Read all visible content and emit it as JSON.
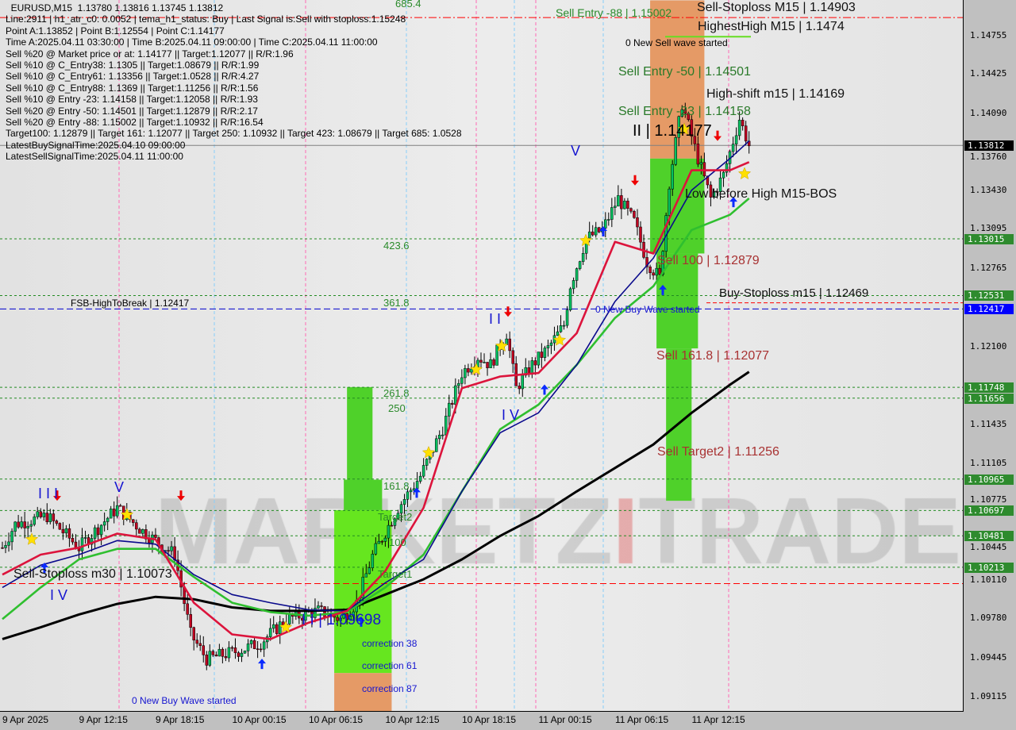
{
  "header": {
    "lines": [
      "  EURUSD,M15  1.13780 1.13816 1.13745 1.13812",
      "Line:2911 | h1_atr_c0: 0.0052 | tema_h1_status: Buy | Last Signal is:Sell with stoploss:1.15248",
      "Point A:1.13852 | Point B:1.12554 | Point C:1.14177",
      "Time A:2025.04.11 03:30:00 | Time B:2025.04.11 09:00:00 | Time C:2025.04.11 11:00:00",
      "Sell %20 @ Market price or at: 1.14177 || Target:1.12077 || R/R:1.96",
      "Sell %10 @ C_Entry38: 1.1305 || Target:1.08679 || R/R:1.99",
      "Sell %10 @ C_Entry61: 1.13356 || Target:1.0528 || R/R:4.27",
      "Sell %10 @ C_Entry88: 1.1369 || Target:1.11256 || R/R:1.56",
      "Sell %10 @ Entry -23: 1.14158 || Target:1.12058 || R/R:1.93",
      "Sell %20 @ Entry -50: 1.14501 || Target:1.12879 || R/R:2.17",
      "Sell %20 @ Entry -88: 1.15002 || Target:1.10932 || R/R:16.54",
      "Target100: 1.12879 || Target 161: 1.12077 || Target 250: 1.10932 || Target 423: 1.08679 || Target 685: 1.0528",
      "LatestBuySignalTime:2025.04.10 09:00:00",
      "LatestSellSignalTime:2025.04.11 11:00:00"
    ]
  },
  "watermark": "MARKETZ TRADE",
  "labels": {
    "sell_stoploss_m15": "Sell-Stoploss M15 | 1.14903",
    "highest_high": "HighestHigh   M15 | 1.1474",
    "new_sell_wave": "0 New Sell wave started",
    "sell_entry_88": "Sell Entry -88 | 1.15002",
    "sell_entry_50": "Sell Entry -50 | 1.14501",
    "high_shift": "High-shift m15 | 1.14169",
    "sell_entry_23": "Sell Entry -23 | 1.14158",
    "point_c": "II | 1.14177",
    "low_before_high": "Low before High   M15-BOS",
    "sell_100": "Sell 100 | 1.12879",
    "buy_stoploss": "Buy-Stoploss m15 | 1.12469",
    "new_buy_wave_right": "0 New Buy Wave started",
    "sell_161": "Sell 161.8 | 1.12077",
    "sell_target2": "Sell Target2 | 1.11256",
    "fsb": "FSB-HighToBreak | 1.12417",
    "sell_stoploss_m30": "Sell-Stoploss m30 | 1.10073",
    "point_low": "I I | 1.09698",
    "new_buy_wave_left": "0 New Buy Wave started",
    "fib_685": "685.4",
    "fib_423": "423.6",
    "fib_361": "361.8",
    "fib_261": "261.8",
    "fib_250": "250",
    "fib_161": "161.8",
    "target2": "Target2",
    "fib_100": "100",
    "target1": "Target1",
    "correction_38": "correction 38",
    "correction_61": "correction 61",
    "correction_87": "correction 87",
    "wave_marks": [
      "I I I",
      "V",
      "I V",
      "I I",
      "I V",
      "V"
    ]
  },
  "chart_data": {
    "type": "candlestick",
    "symbol": "EURUSD",
    "timeframe": "M15",
    "ylim": [
      1.0895,
      1.1505
    ],
    "y_ticks": [
      1.14755,
      1.14425,
      1.1409,
      1.1376,
      1.1343,
      1.13095,
      1.12765,
      1.121,
      1.11435,
      1.11105,
      1.10775,
      1.10445,
      1.1011,
      1.0978,
      1.09445,
      1.09115
    ],
    "x_ticks": [
      "9 Apr 2025",
      "9 Apr 12:15",
      "9 Apr 18:15",
      "10 Apr 00:15",
      "10 Apr 06:15",
      "10 Apr 12:15",
      "10 Apr 18:15",
      "11 Apr 00:15",
      "11 Apr 06:15",
      "11 Apr 12:15"
    ],
    "current_price": 1.13812,
    "price_tags": [
      {
        "value": "1.13812",
        "color": "#000000"
      },
      {
        "value": "1.13015",
        "color": "#2e8b2e"
      },
      {
        "value": "1.12531",
        "color": "#2e8b2e"
      },
      {
        "value": "1.12417",
        "color": "#0000ff"
      },
      {
        "value": "1.11748",
        "color": "#2e8b2e"
      },
      {
        "value": "1.11656",
        "color": "#2e8b2e"
      },
      {
        "value": "1.10965",
        "color": "#2e8b2e"
      },
      {
        "value": "1.10697",
        "color": "#2e8b2e"
      },
      {
        "value": "1.10481",
        "color": "#2e8b2e"
      },
      {
        "value": "1.10213",
        "color": "#2e8b2e"
      }
    ],
    "levels": [
      {
        "price": 1.14903,
        "color": "#ff0000",
        "style": "dashdot"
      },
      {
        "price": 1.13812,
        "color": "#808080",
        "style": "solid"
      },
      {
        "price": 1.13015,
        "color": "#228b22",
        "style": "dotted"
      },
      {
        "price": 1.12531,
        "color": "#228b22",
        "style": "dotted"
      },
      {
        "price": 1.12417,
        "color": "#0000cd",
        "style": "dashed"
      },
      {
        "price": 1.11748,
        "color": "#228b22",
        "style": "dotted"
      },
      {
        "price": 1.11656,
        "color": "#228b22",
        "style": "dotted"
      },
      {
        "price": 1.10965,
        "color": "#228b22",
        "style": "dotted"
      },
      {
        "price": 1.10697,
        "color": "#228b22",
        "style": "dotted"
      },
      {
        "price": 1.10481,
        "color": "#228b22",
        "style": "dotted"
      },
      {
        "price": 1.10213,
        "color": "#228b22",
        "style": "dotted"
      },
      {
        "price": 1.10073,
        "color": "#ff0000",
        "style": "dashed"
      }
    ],
    "zones": [
      {
        "from": "2025-04-11 09:00",
        "to": "2025-04-11 13:15",
        "low": 1.137,
        "high": 1.1505,
        "color": "#e59a66"
      },
      {
        "from": "2025-04-11 09:00",
        "to": "2025-04-11 13:15",
        "low": 1.1289,
        "high": 1.137,
        "color": "#4fd12a"
      },
      {
        "from": "2025-04-11 09:30",
        "to": "2025-04-11 12:45",
        "low": 1.1208,
        "high": 1.1289,
        "color": "#4fd12a"
      },
      {
        "from": "2025-04-11 10:15",
        "to": "2025-04-11 12:15",
        "low": 1.1078,
        "high": 1.1208,
        "color": "#4fd12a"
      },
      {
        "from": "2025-04-10 09:15",
        "to": "2025-04-10 11:15",
        "low": 1.1096,
        "high": 1.1175,
        "color": "#4fd12a"
      },
      {
        "from": "2025-04-10 09:00",
        "to": "2025-04-10 12:00",
        "low": 1.107,
        "high": 1.1096,
        "color": "#4fd12a"
      },
      {
        "from": "2025-04-10 08:15",
        "to": "2025-04-10 12:45",
        "low": 1.0931,
        "high": 1.107,
        "color": "#66e61f"
      },
      {
        "from": "2025-04-10 08:15",
        "to": "2025-04-10 12:45",
        "low": 1.0895,
        "high": 1.0931,
        "color": "#e59a66"
      }
    ],
    "price_path": [
      [
        "2025-04-09 06:15",
        1.1038
      ],
      [
        "2025-04-09 07:15",
        1.1058
      ],
      [
        "2025-04-09 09:45",
        1.1065
      ],
      [
        "2025-04-09 12:15",
        1.1038
      ],
      [
        "2025-04-09 15:15",
        1.1072
      ],
      [
        "2025-04-09 17:15",
        1.1052
      ],
      [
        "2025-04-09 19:45",
        1.1032
      ],
      [
        "2025-04-09 21:00",
        1.0964
      ],
      [
        "2025-04-09 22:15",
        1.0943
      ],
      [
        "2025-04-10 00:45",
        1.095
      ],
      [
        "2025-04-10 02:30",
        1.0957
      ],
      [
        "2025-04-10 04:30",
        1.0977
      ],
      [
        "2025-04-10 07:00",
        1.0984
      ],
      [
        "2025-04-10 08:45",
        1.0977
      ],
      [
        "2025-04-10 10:00",
        1.0991
      ],
      [
        "2025-04-10 11:15",
        1.1031
      ],
      [
        "2025-04-10 13:15",
        1.1072
      ],
      [
        "2025-04-10 15:00",
        1.1099
      ],
      [
        "2025-04-10 16:45",
        1.114
      ],
      [
        "2025-04-10 18:15",
        1.1187
      ],
      [
        "2025-04-10 19:30",
        1.1201
      ],
      [
        "2025-04-10 20:30",
        1.1194
      ],
      [
        "2025-04-10 21:45",
        1.1221
      ],
      [
        "2025-04-10 22:30",
        1.1174
      ],
      [
        "2025-04-10 23:45",
        1.1194
      ],
      [
        "2025-04-11 01:00",
        1.1208
      ],
      [
        "2025-04-11 02:15",
        1.1228
      ],
      [
        "2025-04-11 02:45",
        1.1262
      ],
      [
        "2025-04-11 04:00",
        1.1302
      ],
      [
        "2025-04-11 05:15",
        1.1309
      ],
      [
        "2025-04-11 06:30",
        1.1336
      ],
      [
        "2025-04-11 07:45",
        1.1316
      ],
      [
        "2025-04-11 08:45",
        1.1282
      ],
      [
        "2025-04-11 09:45",
        1.1268
      ],
      [
        "2025-04-11 10:30",
        1.135
      ],
      [
        "2025-04-11 11:30",
        1.1417
      ],
      [
        "2025-04-11 12:45",
        1.137
      ],
      [
        "2025-04-11 13:45",
        1.1336
      ],
      [
        "2025-04-11 14:45",
        1.1356
      ],
      [
        "2025-04-11 16:00",
        1.1404
      ],
      [
        "2025-04-11 16:45",
        1.13812
      ]
    ],
    "ma_times": [
      "2025-04-09 06:15",
      "2025-04-09 09:15",
      "2025-04-09 12:15",
      "2025-04-09 15:15",
      "2025-04-09 18:15",
      "2025-04-09 21:15",
      "2025-04-10 00:15",
      "2025-04-10 03:15",
      "2025-04-10 06:15",
      "2025-04-10 09:15",
      "2025-04-10 12:15",
      "2025-04-10 15:15",
      "2025-04-10 18:15",
      "2025-04-10 21:15",
      "2025-04-11 00:15",
      "2025-04-11 03:15",
      "2025-04-11 06:15",
      "2025-04-11 09:15",
      "2025-04-11 12:15",
      "2025-04-11 15:15",
      "2025-04-11 16:45"
    ],
    "series": [
      {
        "color": "#000000",
        "values": [
          1.096,
          1.097,
          1.0981,
          1.099,
          1.0996,
          1.0994,
          1.0987,
          1.0984,
          1.0984,
          1.0985,
          1.0998,
          1.1011,
          1.1028,
          1.1048,
          1.1065,
          1.1086,
          1.1106,
          1.1126,
          1.1153,
          1.1177,
          1.1188
        ]
      },
      {
        "color": "#2fbf2f",
        "values": [
          1.0977,
          1.1004,
          1.1028,
          1.1037,
          1.1037,
          1.1013,
          1.0991,
          1.0983,
          1.098,
          1.0983,
          1.1004,
          1.1032,
          1.1086,
          1.1139,
          1.116,
          1.1194,
          1.1234,
          1.1261,
          1.1309,
          1.1322,
          1.1336
        ]
      },
      {
        "color": "#0a0a8c",
        "values": [
          1.1004,
          1.1023,
          1.1032,
          1.1044,
          1.1041,
          1.1015,
          1.0998,
          1.0991,
          1.0985,
          1.0984,
          1.1008,
          1.1028,
          1.1086,
          1.1136,
          1.1153,
          1.1194,
          1.1248,
          1.1285,
          1.1343,
          1.137,
          1.1385
        ]
      },
      {
        "color": "#dc143c",
        "values": [
          1.1015,
          1.1032,
          1.1038,
          1.105,
          1.1045,
          1.0991,
          1.0964,
          1.096,
          1.0974,
          1.0984,
          1.1018,
          1.1072,
          1.1174,
          1.1184,
          1.1187,
          1.1221,
          1.1299,
          1.1289,
          1.136,
          1.136,
          1.1367
        ]
      }
    ]
  }
}
